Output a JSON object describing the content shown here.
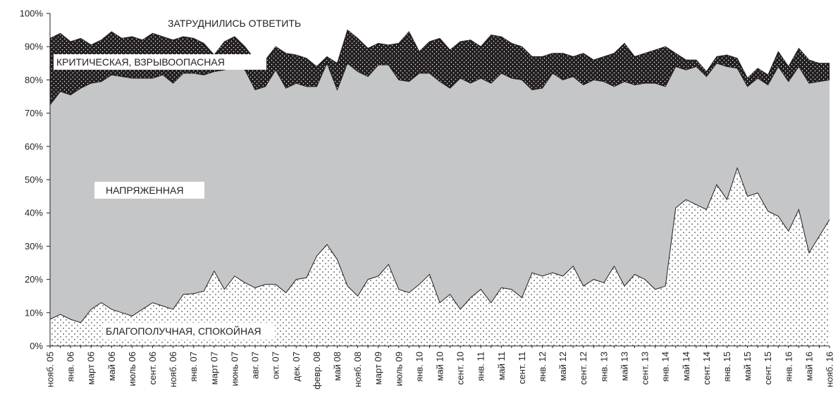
{
  "chart_data": {
    "type": "area",
    "stacked": true,
    "ylim": [
      0,
      100
    ],
    "y_ticks": [
      "0%",
      "10%",
      "20%",
      "30%",
      "40%",
      "50%",
      "60%",
      "70%",
      "80%",
      "90%",
      "100%"
    ],
    "x_tick_labels": [
      "нояб. 05",
      "янв. 06",
      "март 06",
      "май 06",
      "июль 06",
      "сент. 06",
      "нояб. 06",
      "янв. 07",
      "март 07",
      "июнь 07",
      "авг. 07",
      "окт. 07",
      "дек. 07",
      "февр. 08",
      "май 08",
      "нояб. 08",
      "март 09",
      "июль 09",
      "янв. 10",
      "май 10",
      "сент. 10",
      "янв. 11",
      "май 11",
      "сент. 11",
      "янв. 12",
      "май 12",
      "сент. 12",
      "янв. 13",
      "май 13",
      "сент. 13",
      "янв. 14",
      "май 14",
      "сент. 14",
      "янв. 15",
      "май 15",
      "сент. 15",
      "янв. 16",
      "май 16",
      "нояб. 16"
    ],
    "series": [
      {
        "name": "БЛАГОПОЛУЧНАЯ, СПОКОЙНАЯ",
        "fill": "dots-sparse",
        "values": [
          8,
          9.5,
          8,
          7,
          11,
          13,
          11,
          10,
          9,
          11,
          13,
          12,
          11,
          15.5,
          15.7,
          16.5,
          22.5,
          17,
          21,
          19,
          17.5,
          18.5,
          18.5,
          16,
          20,
          20.5,
          27,
          30.5,
          26,
          18,
          15,
          20,
          21,
          24.5,
          17,
          16,
          18.5,
          21.5,
          13,
          15.5,
          11,
          14.5,
          17,
          13,
          17.5,
          17,
          14.5,
          22,
          21,
          22,
          21,
          24,
          18,
          20,
          19,
          24,
          18,
          21.5,
          20,
          17,
          18,
          41.5,
          44,
          42.5,
          41,
          48.5,
          44,
          53.5,
          45,
          46,
          40.5,
          39,
          34.5,
          41,
          28,
          33,
          38
        ]
      },
      {
        "name": "НАПРЯЖЕННАЯ",
        "fill": "#c4c6c8",
        "cumulative": [
          72.5,
          76.5,
          75.5,
          77.5,
          79,
          79.5,
          81.5,
          81,
          80.5,
          80.5,
          80.5,
          81.5,
          79,
          82,
          82,
          81.5,
          82.5,
          83,
          84.5,
          83,
          77,
          78,
          83,
          77.5,
          79,
          78,
          78,
          85,
          77,
          85,
          82.5,
          81,
          84.5,
          84.5,
          80,
          79.5,
          82,
          82,
          79.5,
          77.5,
          80.5,
          79,
          80.5,
          79,
          82,
          80.5,
          80,
          77,
          77.5,
          82,
          80,
          81,
          78.5,
          80,
          79.5,
          78,
          79.5,
          78.5,
          79,
          79,
          78,
          84,
          83,
          84,
          81,
          85,
          84,
          83.5,
          78,
          80.5,
          78.5,
          84,
          79.5,
          84,
          79,
          79.5,
          80
        ]
      },
      {
        "name": "КРИТИЧЕСКАЯ, ВЗРЫВООПАСНАЯ",
        "fill": "dots-on-black",
        "cumulative": [
          92.5,
          94,
          91.5,
          92.5,
          90.5,
          92,
          94.5,
          92.5,
          93,
          92,
          94,
          93,
          92,
          93,
          92.5,
          91,
          87.5,
          91.5,
          93,
          90,
          86,
          86,
          90,
          88,
          87.5,
          86.5,
          84,
          87,
          85,
          95,
          92.5,
          89.5,
          91,
          90.5,
          91,
          94.5,
          88.5,
          91.5,
          92.5,
          89,
          91.5,
          92,
          90,
          93.5,
          93,
          91,
          90,
          87,
          87,
          88,
          88,
          87,
          88,
          86,
          87,
          88,
          91,
          87,
          88,
          89,
          90,
          88,
          86,
          86,
          82.5,
          87,
          87.5,
          86.5,
          80.5,
          83.5,
          81.5,
          88.5,
          84,
          89.5,
          86,
          85,
          85
        ]
      },
      {
        "name": "ЗАТРУДНИЛИСЬ ОТВЕТИТЬ",
        "fill": "#ffffff",
        "cumulative": "100"
      }
    ]
  }
}
